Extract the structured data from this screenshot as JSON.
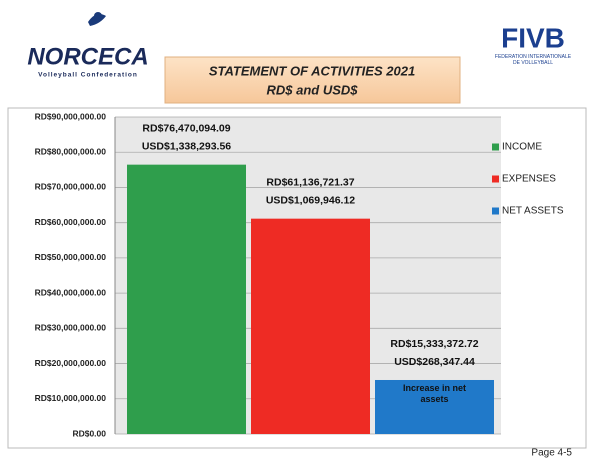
{
  "header": {
    "left_logo": "NORCECA",
    "left_logo_sub": "Volleyball Confederation",
    "right_logo": "FIVB",
    "right_logo_sub": "FÉDÉRATION INTERNATIONALE DE VOLLEYBALL"
  },
  "chart_data": {
    "type": "bar",
    "title": "STATEMENT OF ACTIVITIES 2021",
    "subtitle": "RD$ and USD$",
    "categories": [
      null
    ],
    "series": [
      {
        "name": "INCOME",
        "color": "#2f9e4c",
        "values": [
          76470094.09
        ],
        "value_labels": [
          "RD$76,470,094.09"
        ],
        "usd_values": [
          1338293.56
        ],
        "usd_labels": [
          "USD$1,338,293.56"
        ]
      },
      {
        "name": "EXPENSES",
        "color": "#ee2b24",
        "values": [
          61136721.37
        ],
        "value_labels": [
          "RD$61,136,721.37"
        ],
        "usd_values": [
          1069946.12
        ],
        "usd_labels": [
          "USD$1,069,946.12"
        ]
      },
      {
        "name": "NET ASSETS",
        "color": "#2079c9",
        "values": [
          15333372.72
        ],
        "value_labels": [
          "RD$15,333,372.72"
        ],
        "usd_values": [
          268347.44
        ],
        "usd_labels": [
          "USD$268,347.44"
        ],
        "annotation": "Increase in net assets"
      }
    ],
    "ylim": [
      0,
      90000000
    ],
    "yticks": [
      {
        "value": 0,
        "label": "RD$0.00"
      },
      {
        "value": 10000000,
        "label": "RD$10,000,000.00"
      },
      {
        "value": 20000000,
        "label": "RD$20,000,000.00"
      },
      {
        "value": 30000000,
        "label": "RD$30,000,000.00"
      },
      {
        "value": 40000000,
        "label": "RD$40,000,000.00"
      },
      {
        "value": 50000000,
        "label": "RD$50,000,000.00"
      },
      {
        "value": 60000000,
        "label": "RD$60,000,000.00"
      },
      {
        "value": 70000000,
        "label": "RD$70,000,000.00"
      },
      {
        "value": 80000000,
        "label": "RD$80,000,000.00"
      },
      {
        "value": 90000000,
        "label": "RD$90,000,000.00"
      }
    ],
    "grid": true,
    "legend": "right"
  },
  "footer": {
    "page": "Page 4-5"
  }
}
